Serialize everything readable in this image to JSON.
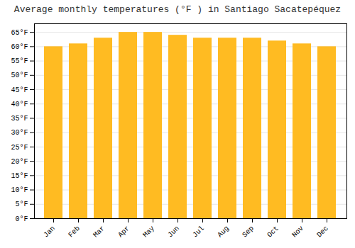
{
  "chart_data": {
    "type": "bar",
    "title": "Average monthly temperatures (°F ) in Santiago Sacatepéquez",
    "categories": [
      "Jan",
      "Feb",
      "Mar",
      "Apr",
      "May",
      "Jun",
      "Jul",
      "Aug",
      "Sep",
      "Oct",
      "Nov",
      "Dec"
    ],
    "values": [
      60,
      61,
      63,
      65,
      65,
      64,
      63,
      63,
      63,
      62,
      61,
      60
    ],
    "color": "#FFBB22",
    "ylim": [
      0,
      68
    ],
    "yticks": [
      {
        "value": 0,
        "label": "0°F"
      },
      {
        "value": 5,
        "label": "5°F"
      },
      {
        "value": 10,
        "label": "10°F"
      },
      {
        "value": 15,
        "label": "15°F"
      },
      {
        "value": 20,
        "label": "20°F"
      },
      {
        "value": 25,
        "label": "25°F"
      },
      {
        "value": 30,
        "label": "30°F"
      },
      {
        "value": 35,
        "label": "35°F"
      },
      {
        "value": 40,
        "label": "40°F"
      },
      {
        "value": 45,
        "label": "45°F"
      },
      {
        "value": 50,
        "label": "50°F"
      },
      {
        "value": 55,
        "label": "55°F"
      },
      {
        "value": 60,
        "label": "60°F"
      },
      {
        "value": 65,
        "label": "65°F"
      }
    ],
    "grid": true
  }
}
